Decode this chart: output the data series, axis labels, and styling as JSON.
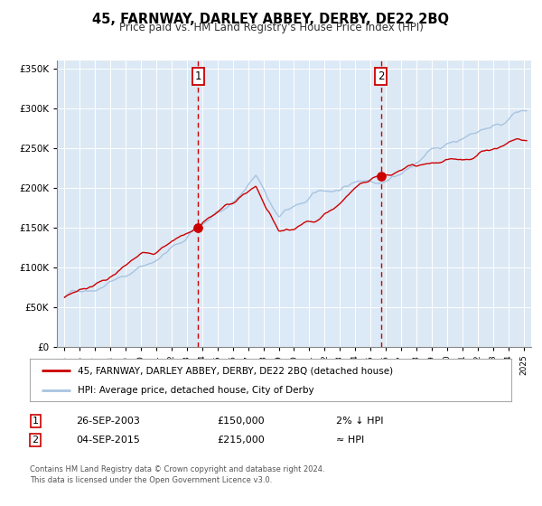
{
  "title": "45, FARNWAY, DARLEY ABBEY, DERBY, DE22 2BQ",
  "subtitle": "Price paid vs. HM Land Registry's House Price Index (HPI)",
  "legend_line1": "45, FARNWAY, DARLEY ABBEY, DERBY, DE22 2BQ (detached house)",
  "legend_line2": "HPI: Average price, detached house, City of Derby",
  "annotation1_label": "1",
  "annotation1_date": "26-SEP-2003",
  "annotation1_price": "£150,000",
  "annotation1_note": "2% ↓ HPI",
  "annotation2_label": "2",
  "annotation2_date": "04-SEP-2015",
  "annotation2_price": "£215,000",
  "annotation2_note": "≈ HPI",
  "footnote1": "Contains HM Land Registry data © Crown copyright and database right 2024.",
  "footnote2": "This data is licensed under the Open Government Licence v3.0.",
  "sale1_x": 2003.74,
  "sale1_y": 150000,
  "sale2_x": 2015.67,
  "sale2_y": 215000,
  "vline1_x": 2003.74,
  "vline2_x": 2015.67,
  "hpi_color": "#a8c4e0",
  "price_color": "#cc0000",
  "vline_color": "#cc0000",
  "highlight_color": "#dce9f7",
  "background_color": "#dce9f5",
  "plot_bg": "#ffffff",
  "ylim": [
    0,
    360000
  ],
  "xlim": [
    1994.5,
    2025.5
  ],
  "ylabel_ticks": [
    0,
    50000,
    100000,
    150000,
    200000,
    250000,
    300000,
    350000
  ],
  "xlabel_ticks": [
    1995,
    1996,
    1997,
    1998,
    1999,
    2000,
    2001,
    2002,
    2003,
    2004,
    2005,
    2006,
    2007,
    2008,
    2009,
    2010,
    2011,
    2012,
    2013,
    2014,
    2015,
    2016,
    2017,
    2018,
    2019,
    2020,
    2021,
    2022,
    2023,
    2024,
    2025
  ]
}
